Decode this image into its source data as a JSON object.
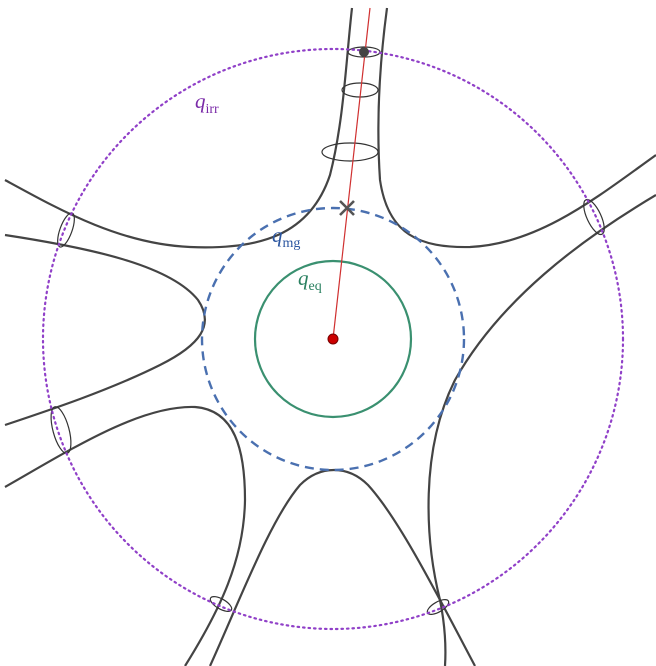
{
  "labels": [
    {
      "symbol": "q",
      "subscript": "irr"
    },
    {
      "symbol": "q",
      "subscript": "mg"
    },
    {
      "symbol": "q",
      "subscript": "eq"
    }
  ]
}
